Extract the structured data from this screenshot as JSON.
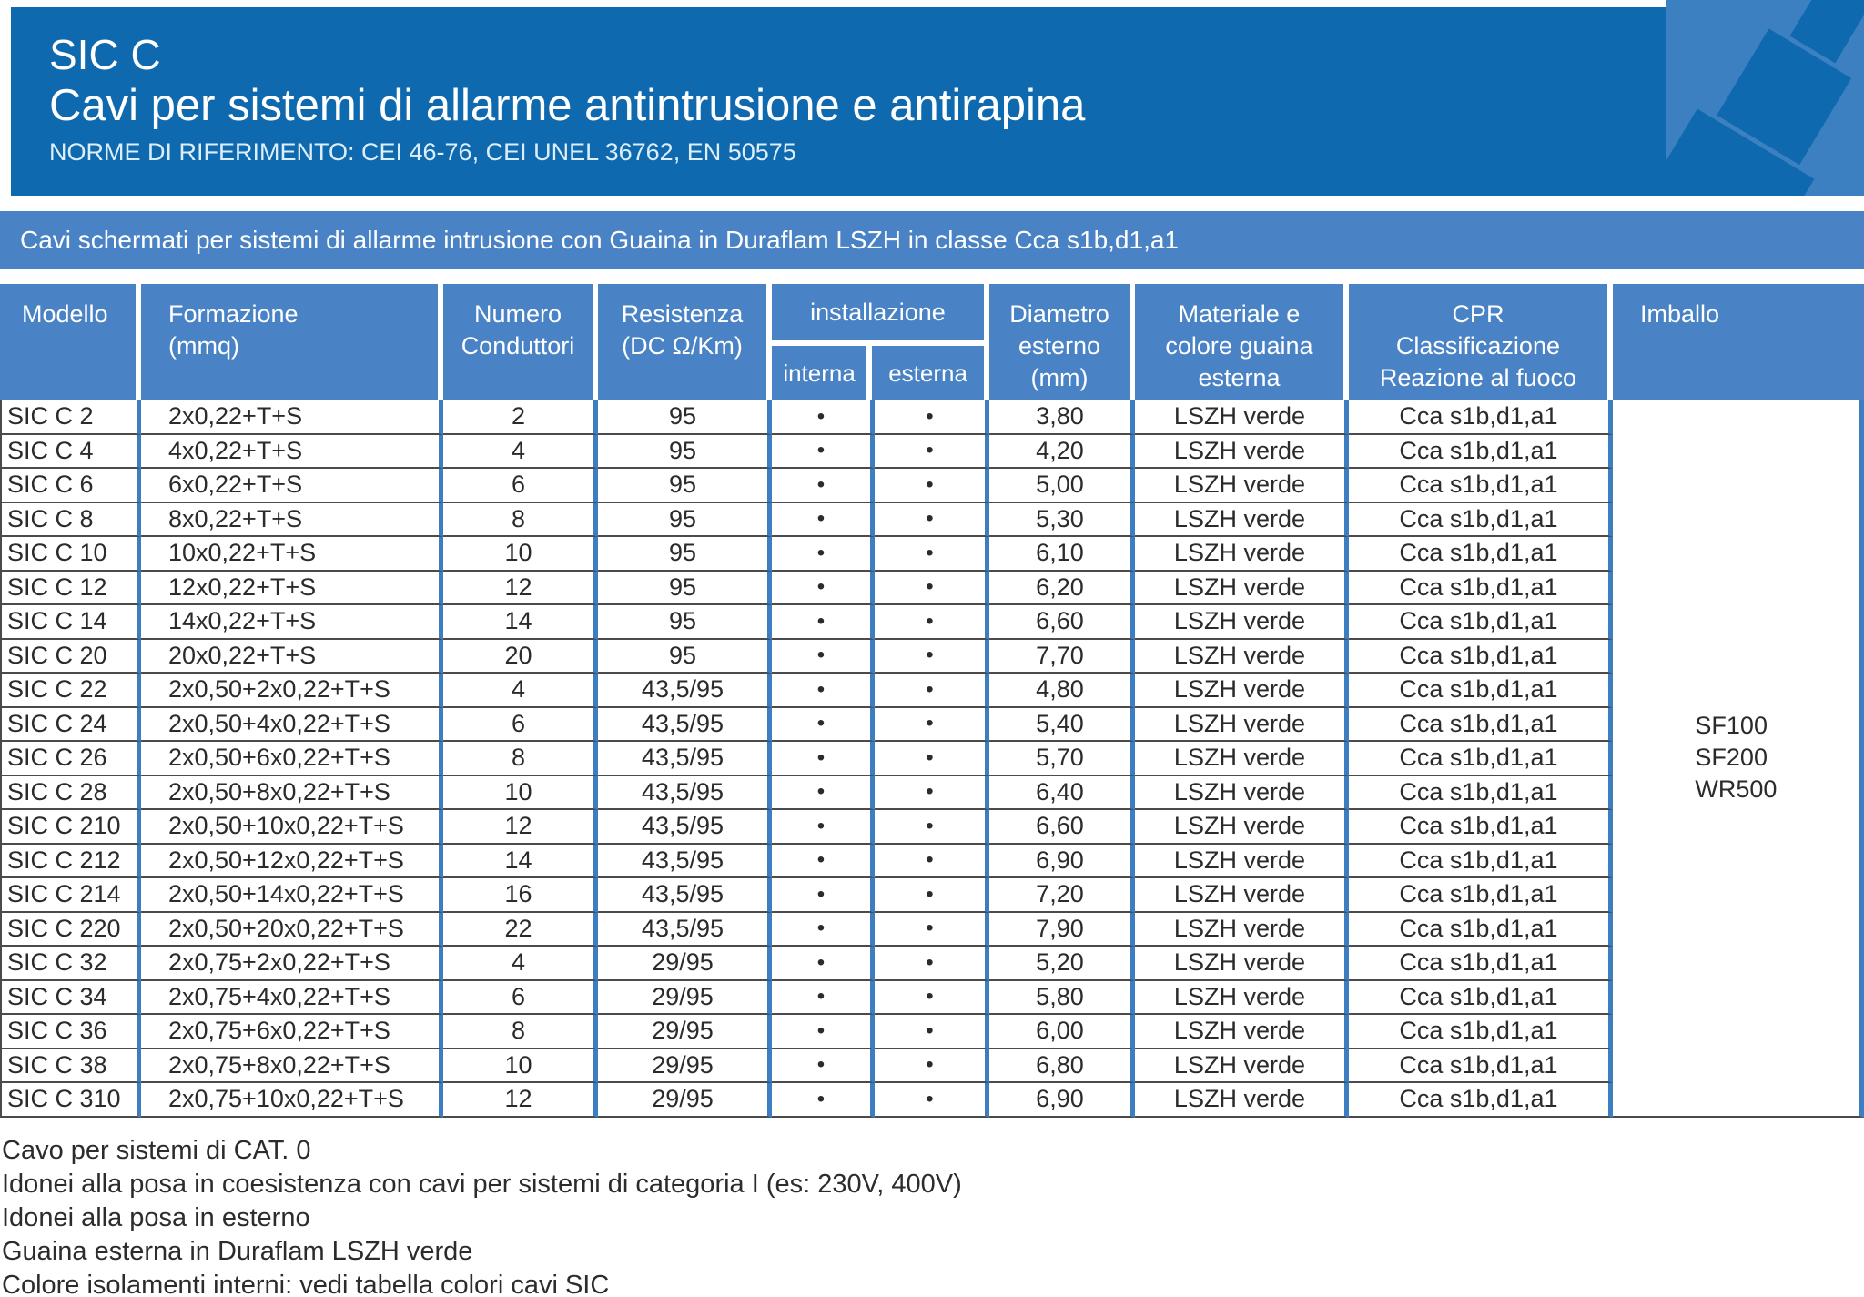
{
  "header": {
    "product_code": "SIC C",
    "title": "Cavi per sistemi di allarme antintrusione e antirapina",
    "norms": "NORME DI RIFERIMENTO: CEI 46-76, CEI UNEL 36762, EN 50575"
  },
  "banner": "Cavi schermati per sistemi di allarme intrusione con Guaina in Duraflam LSZH in classe Cca s1b,d1,a1",
  "table": {
    "headers": {
      "modello": "Modello",
      "formazione": "Formazione\n(mmq)",
      "numero": "Numero\nConduttori",
      "resistenza": "Resistenza\n(DC Ω/Km)",
      "installazione": "installazione",
      "interna": "interna",
      "esterna": "esterna",
      "diametro": "Diametro\nesterno\n(mm)",
      "materiale": "Materiale e\ncolore guaina\nesterna",
      "cpr": "CPR\nClassificazione\nReazione al fuoco",
      "imballo": "Imballo"
    },
    "rows": [
      {
        "model": "SIC C 2",
        "formation": "2x0,22+T+S",
        "conductors": "2",
        "resistance": "95",
        "interna": "•",
        "esterna": "•",
        "diameter": "3,80",
        "sheath": "LSZH verde",
        "cpr": "Cca s1b,d1,a1"
      },
      {
        "model": "SIC C 4",
        "formation": "4x0,22+T+S",
        "conductors": "4",
        "resistance": "95",
        "interna": "•",
        "esterna": "•",
        "diameter": "4,20",
        "sheath": "LSZH verde",
        "cpr": "Cca s1b,d1,a1"
      },
      {
        "model": "SIC C 6",
        "formation": "6x0,22+T+S",
        "conductors": "6",
        "resistance": "95",
        "interna": "•",
        "esterna": "•",
        "diameter": "5,00",
        "sheath": "LSZH verde",
        "cpr": "Cca s1b,d1,a1"
      },
      {
        "model": "SIC C 8",
        "formation": "8x0,22+T+S",
        "conductors": "8",
        "resistance": "95",
        "interna": "•",
        "esterna": "•",
        "diameter": "5,30",
        "sheath": "LSZH verde",
        "cpr": "Cca s1b,d1,a1"
      },
      {
        "model": "SIC C 10",
        "formation": "10x0,22+T+S",
        "conductors": "10",
        "resistance": "95",
        "interna": "•",
        "esterna": "•",
        "diameter": "6,10",
        "sheath": "LSZH verde",
        "cpr": "Cca s1b,d1,a1"
      },
      {
        "model": "SIC C 12",
        "formation": "12x0,22+T+S",
        "conductors": "12",
        "resistance": "95",
        "interna": "•",
        "esterna": "•",
        "diameter": "6,20",
        "sheath": "LSZH verde",
        "cpr": "Cca s1b,d1,a1"
      },
      {
        "model": "SIC C 14",
        "formation": "14x0,22+T+S",
        "conductors": "14",
        "resistance": "95",
        "interna": "•",
        "esterna": "•",
        "diameter": "6,60",
        "sheath": "LSZH verde",
        "cpr": "Cca s1b,d1,a1"
      },
      {
        "model": "SIC C 20",
        "formation": "20x0,22+T+S",
        "conductors": "20",
        "resistance": "95",
        "interna": "•",
        "esterna": "•",
        "diameter": "7,70",
        "sheath": "LSZH verde",
        "cpr": "Cca s1b,d1,a1"
      },
      {
        "model": "SIC C 22",
        "formation": "2x0,50+2x0,22+T+S",
        "conductors": "4",
        "resistance": "43,5/95",
        "interna": "•",
        "esterna": "•",
        "diameter": "4,80",
        "sheath": "LSZH verde",
        "cpr": "Cca s1b,d1,a1"
      },
      {
        "model": "SIC C 24",
        "formation": "2x0,50+4x0,22+T+S",
        "conductors": "6",
        "resistance": "43,5/95",
        "interna": "•",
        "esterna": "•",
        "diameter": "5,40",
        "sheath": "LSZH verde",
        "cpr": "Cca s1b,d1,a1"
      },
      {
        "model": "SIC C 26",
        "formation": "2x0,50+6x0,22+T+S",
        "conductors": "8",
        "resistance": "43,5/95",
        "interna": "•",
        "esterna": "•",
        "diameter": "5,70",
        "sheath": "LSZH verde",
        "cpr": "Cca s1b,d1,a1"
      },
      {
        "model": "SIC C 28",
        "formation": "2x0,50+8x0,22+T+S",
        "conductors": "10",
        "resistance": "43,5/95",
        "interna": "•",
        "esterna": "•",
        "diameter": "6,40",
        "sheath": "LSZH verde",
        "cpr": "Cca s1b,d1,a1"
      },
      {
        "model": "SIC C 210",
        "formation": "2x0,50+10x0,22+T+S",
        "conductors": "12",
        "resistance": "43,5/95",
        "interna": "•",
        "esterna": "•",
        "diameter": "6,60",
        "sheath": "LSZH verde",
        "cpr": "Cca s1b,d1,a1"
      },
      {
        "model": "SIC C 212",
        "formation": "2x0,50+12x0,22+T+S",
        "conductors": "14",
        "resistance": "43,5/95",
        "interna": "•",
        "esterna": "•",
        "diameter": "6,90",
        "sheath": "LSZH verde",
        "cpr": "Cca s1b,d1,a1"
      },
      {
        "model": "SIC C 214",
        "formation": "2x0,50+14x0,22+T+S",
        "conductors": "16",
        "resistance": "43,5/95",
        "interna": "•",
        "esterna": "•",
        "diameter": "7,20",
        "sheath": "LSZH verde",
        "cpr": "Cca s1b,d1,a1"
      },
      {
        "model": "SIC C 220",
        "formation": "2x0,50+20x0,22+T+S",
        "conductors": "22",
        "resistance": "43,5/95",
        "interna": "•",
        "esterna": "•",
        "diameter": "7,90",
        "sheath": "LSZH verde",
        "cpr": "Cca s1b,d1,a1"
      },
      {
        "model": "SIC C 32",
        "formation": "2x0,75+2x0,22+T+S",
        "conductors": "4",
        "resistance": "29/95",
        "interna": "•",
        "esterna": "•",
        "diameter": "5,20",
        "sheath": "LSZH verde",
        "cpr": "Cca s1b,d1,a1"
      },
      {
        "model": "SIC C 34",
        "formation": "2x0,75+4x0,22+T+S",
        "conductors": "6",
        "resistance": "29/95",
        "interna": "•",
        "esterna": "•",
        "diameter": "5,80",
        "sheath": "LSZH verde",
        "cpr": "Cca s1b,d1,a1"
      },
      {
        "model": "SIC C 36",
        "formation": "2x0,75+6x0,22+T+S",
        "conductors": "8",
        "resistance": "29/95",
        "interna": "•",
        "esterna": "•",
        "diameter": "6,00",
        "sheath": "LSZH verde",
        "cpr": "Cca s1b,d1,a1"
      },
      {
        "model": "SIC C 38",
        "formation": "2x0,75+8x0,22+T+S",
        "conductors": "10",
        "resistance": "29/95",
        "interna": "•",
        "esterna": "•",
        "diameter": "6,80",
        "sheath": "LSZH verde",
        "cpr": "Cca s1b,d1,a1"
      },
      {
        "model": "SIC C 310",
        "formation": "2x0,75+10x0,22+T+S",
        "conductors": "12",
        "resistance": "29/95",
        "interna": "•",
        "esterna": "•",
        "diameter": "6,90",
        "sheath": "LSZH verde",
        "cpr": "Cca s1b,d1,a1"
      }
    ],
    "imballo": [
      "SF100",
      "SF200",
      "WR500"
    ],
    "row_count": 21
  },
  "notes": [
    "Cavo per sistemi di CAT. 0",
    "Idonei alla posa in coesistenza con cavi per sistemi di categoria I (es: 230V, 400V)",
    "Idonei alla posa in esterno",
    "Guaina esterna in Duraflam LSZH verde",
    "Colore isolamenti interni: vedi tabella colori cavi SIC"
  ],
  "colors": {
    "header_bg": "#0f69af",
    "panel_blue": "#4a83c5",
    "line_blue": "#3d7ec2",
    "logo_bg": "#3c80c2",
    "row_line": "#4b4b4b",
    "text": "#2b2b2b"
  }
}
